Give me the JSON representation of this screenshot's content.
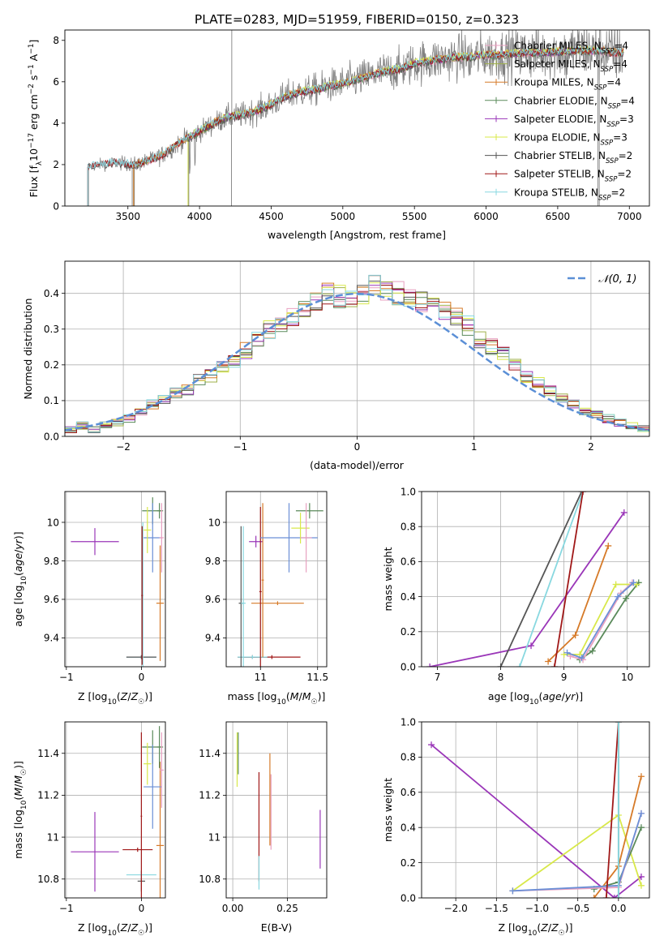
{
  "figure": {
    "title": "PLATE=0283, MJD=51959, FIBERID=0150, z=0.323"
  },
  "colors": {
    "Chabrier MILES": "#e8a0c0",
    "Salpeter MILES": "#9fb04a",
    "Kroupa MILES": "#d67a28",
    "Chabrier ELODIE": "#5a8a5a",
    "Salpeter ELODIE": "#9a36b8",
    "Kroupa ELODIE": "#d8e84a",
    "Chabrier STELIB": "#555555",
    "Salpeter STELIB": "#a01818",
    "Kroupa STELIB": "#88d8e0",
    "data": "#808080",
    "gaussian": "#5b8fd6",
    "extra_blue": "#6b8fd6"
  },
  "chart_data": [
    {
      "id": "spectrum",
      "type": "line",
      "xlabel": "wavelength [Angstrom, rest frame]",
      "ylabel": "Flux [f_λ 10^-17 erg cm^-2 s^-1 A^-1]",
      "xlim": [
        3060,
        7140
      ],
      "ylim": [
        0,
        8.5
      ],
      "xticks": [
        3500,
        4000,
        4500,
        5000,
        5500,
        6000,
        6500,
        7000
      ],
      "yticks": [
        0,
        2,
        4,
        6,
        8
      ],
      "grid": false,
      "legend_position": "right",
      "continuum": {
        "x": [
          3220,
          3300,
          3400,
          3480,
          3550,
          3650,
          3750,
          3850,
          3920,
          4000,
          4100,
          4200,
          4300,
          4400,
          4500,
          4600,
          4700,
          4800,
          4900,
          5000,
          5100,
          5200,
          5300,
          5400,
          5500,
          5600,
          5700,
          5800,
          5900,
          6000,
          6100,
          6200,
          6300,
          6400,
          6500,
          6600,
          6700,
          6800,
          6900,
          7000
        ],
        "y": [
          1.9,
          2.0,
          2.1,
          2.05,
          2.0,
          2.2,
          2.5,
          3.0,
          3.3,
          3.6,
          4.0,
          4.3,
          4.4,
          4.6,
          4.9,
          5.3,
          5.5,
          5.6,
          5.8,
          5.9,
          6.1,
          6.3,
          6.5,
          6.6,
          6.9,
          7.0,
          7.1,
          7.2,
          7.2,
          7.3,
          7.3,
          7.35,
          7.4,
          7.4,
          7.45,
          7.5,
          7.5,
          7.5,
          7.4,
          7.4
        ]
      },
      "data_range": [
        3220,
        6960
      ],
      "series": [
        {
          "name": "Chabrier MILES, N_SSP=4",
          "color_key": "Chabrier MILES",
          "x_start": 3540,
          "x_end": 6960
        },
        {
          "name": "Salpeter MILES, N_SSP=4",
          "color_key": "Salpeter MILES",
          "x_start": 3540,
          "x_end": 6960
        },
        {
          "name": "Kroupa MILES, N_SSP=4",
          "color_key": "Kroupa MILES",
          "x_start": 3540,
          "x_end": 6960
        },
        {
          "name": "Chabrier ELODIE, N_SSP=4",
          "color_key": "Chabrier ELODIE",
          "x_start": 3920,
          "x_end": 6800
        },
        {
          "name": "Salpeter ELODIE, N_SSP=3",
          "color_key": "Salpeter ELODIE",
          "x_start": 3920,
          "x_end": 6800
        },
        {
          "name": "Kroupa ELODIE, N_SSP=3",
          "color_key": "Kroupa ELODIE",
          "x_start": 3920,
          "x_end": 6800
        },
        {
          "name": "Chabrier STELIB, N_SSP=2",
          "color_key": "Chabrier STELIB",
          "x_start": 3220,
          "x_end": 6960
        },
        {
          "name": "Salpeter STELIB, N_SSP=2",
          "color_key": "Salpeter STELIB",
          "x_start": 3220,
          "x_end": 6960
        },
        {
          "name": "Kroupa STELIB, N_SSP=2",
          "color_key": "Kroupa STELIB",
          "x_start": 3220,
          "x_end": 6960
        }
      ],
      "legend_entries": [
        {
          "base": "Chabrier MILES, N",
          "sub": "SSP",
          "tail": "=4",
          "color_key": "Chabrier MILES"
        },
        {
          "base": "Salpeter MILES, N",
          "sub": "SSP",
          "tail": "=4",
          "color_key": "Salpeter MILES"
        },
        {
          "base": "Kroupa MILES, N",
          "sub": "SSP",
          "tail": "=4",
          "color_key": "Kroupa MILES"
        },
        {
          "base": "Chabrier ELODIE, N",
          "sub": "SSP",
          "tail": "=4",
          "color_key": "Chabrier ELODIE"
        },
        {
          "base": "Salpeter ELODIE, N",
          "sub": "SSP",
          "tail": "=3",
          "color_key": "Salpeter ELODIE"
        },
        {
          "base": "Kroupa ELODIE, N",
          "sub": "SSP",
          "tail": "=3",
          "color_key": "Kroupa ELODIE"
        },
        {
          "base": "Chabrier STELIB, N",
          "sub": "SSP",
          "tail": "=2",
          "color_key": "Chabrier STELIB"
        },
        {
          "base": "Salpeter STELIB, N",
          "sub": "SSP",
          "tail": "=2",
          "color_key": "Salpeter STELIB"
        },
        {
          "base": "Kroupa STELIB, N",
          "sub": "SSP",
          "tail": "=2",
          "color_key": "Kroupa STELIB"
        }
      ]
    },
    {
      "id": "residuals",
      "type": "area",
      "xlabel": "(data-model)/error",
      "ylabel": "Normed distribution",
      "xlim": [
        -2.5,
        2.5
      ],
      "ylim": [
        0,
        0.49
      ],
      "xticks": [
        -2,
        -1,
        0,
        1,
        2
      ],
      "yticks": [
        0.0,
        0.1,
        0.2,
        0.3,
        0.4
      ],
      "grid": true,
      "legend_position": "top-right",
      "gaussian_label": "𝒩(0, 1)",
      "bin_width": 0.1,
      "bin_start": -2.5,
      "mean_hist": [
        0.02,
        0.03,
        0.02,
        0.03,
        0.04,
        0.05,
        0.07,
        0.09,
        0.1,
        0.12,
        0.13,
        0.16,
        0.17,
        0.19,
        0.21,
        0.24,
        0.27,
        0.3,
        0.31,
        0.33,
        0.36,
        0.38,
        0.4,
        0.39,
        0.38,
        0.4,
        0.42,
        0.41,
        0.4,
        0.39,
        0.38,
        0.37,
        0.35,
        0.33,
        0.31,
        0.27,
        0.25,
        0.23,
        0.2,
        0.17,
        0.15,
        0.13,
        0.11,
        0.09,
        0.07,
        0.06,
        0.05,
        0.04,
        0.03,
        0.02
      ]
    },
    {
      "id": "z-age",
      "type": "scatter",
      "xlabel": "Z [log10(Z/Z☉)]",
      "ylabel": "age [log10(age/yr)]",
      "xlim": [
        -1.02,
        0.32
      ],
      "ylim": [
        9.25,
        10.16
      ],
      "xticks": [
        -1,
        0
      ],
      "yticks": [
        9.4,
        9.6,
        9.8,
        10.0
      ],
      "grid": true,
      "points": [
        {
          "x": -0.62,
          "y": 9.9,
          "xerr": 0.32,
          "yerr": 0.07,
          "color_key": "Salpeter ELODIE"
        },
        {
          "x": 0.0,
          "y": 9.3,
          "xerr": 0.2,
          "yerr": 0.01,
          "color_key": "Kroupa STELIB"
        },
        {
          "x": 0.0,
          "y": 9.3,
          "xerr": 0.2,
          "yerr": 0.01,
          "color_key": "Chabrier STELIB"
        },
        {
          "x": 0.25,
          "y": 9.58,
          "xerr": 0.05,
          "yerr": 0.3,
          "color_key": "Kroupa MILES"
        },
        {
          "x": 0.24,
          "y": 10.06,
          "xerr": 0.03,
          "yerr": 0.04,
          "color_key": "Chabrier ELODIE"
        },
        {
          "x": 0.15,
          "y": 10.06,
          "xerr": 0.14,
          "yerr": 0.07,
          "color_key": "Chabrier ELODIE"
        },
        {
          "x": 0.15,
          "y": 9.92,
          "xerr": 0.12,
          "yerr": 0.18,
          "color_key": "extra_blue"
        },
        {
          "x": 0.08,
          "y": 9.96,
          "xerr": 0.05,
          "yerr": 0.12,
          "color_key": "Kroupa ELODIE"
        },
        {
          "x": 0.27,
          "y": 9.92,
          "xerr": 0.03,
          "yerr": 0.18,
          "color_key": "Chabrier MILES"
        },
        {
          "x": 0.02,
          "y": 9.4,
          "xerr": 0.01,
          "yerr": 0.6,
          "color_key": "Kroupa STELIB"
        },
        {
          "x": 0.01,
          "y": 9.62,
          "xerr": 0.01,
          "yerr": 0.36,
          "color_key": "Salpeter STELIB"
        }
      ]
    },
    {
      "id": "mass-age",
      "type": "scatter",
      "xlabel": "mass [log10(M/M☉)]",
      "ylabel": "",
      "xlim": [
        10.7,
        11.58
      ],
      "ylim": [
        9.25,
        10.16
      ],
      "xticks": [
        11.0,
        11.5
      ],
      "yticks": [
        9.4,
        9.6,
        9.8,
        10.0
      ],
      "grid": true,
      "points": [
        {
          "x": 10.93,
          "y": 9.3,
          "xerr": 0.13,
          "yerr": 0.01,
          "color_key": "Salpeter STELIB"
        },
        {
          "x": 11.1,
          "y": 9.3,
          "xerr": 0.25,
          "yerr": 0.01,
          "color_key": "Salpeter STELIB"
        },
        {
          "x": 10.93,
          "y": 9.3,
          "xerr": 0.13,
          "yerr": 0.01,
          "color_key": "Kroupa STELIB"
        },
        {
          "x": 10.83,
          "y": 9.58,
          "xerr": 0.02,
          "yerr": 0.4,
          "color_key": "Chabrier STELIB"
        },
        {
          "x": 10.85,
          "y": 9.58,
          "xerr": 0.02,
          "yerr": 0.4,
          "color_key": "Kroupa STELIB"
        },
        {
          "x": 10.96,
          "y": 9.9,
          "xerr": 0.06,
          "yerr": 0.03,
          "color_key": "Salpeter ELODIE"
        },
        {
          "x": 11.15,
          "y": 9.58,
          "xerr": 0.23,
          "yerr": 0.01,
          "color_key": "Kroupa MILES"
        },
        {
          "x": 11.0,
          "y": 9.64,
          "xerr": 0.01,
          "yerr": 0.44,
          "color_key": "Salpeter STELIB"
        },
        {
          "x": 11.02,
          "y": 9.7,
          "xerr": 0.01,
          "yerr": 0.4,
          "color_key": "Kroupa MILES"
        },
        {
          "x": 11.25,
          "y": 9.92,
          "xerr": 0.25,
          "yerr": 0.18,
          "color_key": "extra_blue"
        },
        {
          "x": 11.35,
          "y": 9.97,
          "xerr": 0.08,
          "yerr": 0.08,
          "color_key": "Kroupa ELODIE"
        },
        {
          "x": 11.43,
          "y": 10.06,
          "xerr": 0.12,
          "yerr": 0.04,
          "color_key": "Chabrier ELODIE"
        },
        {
          "x": 11.4,
          "y": 9.92,
          "xerr": 0.05,
          "yerr": 0.18,
          "color_key": "Chabrier MILES"
        }
      ]
    },
    {
      "id": "age-weight",
      "type": "line",
      "xlabel": "age  [log10(age/yr)]",
      "ylabel": "mass weight",
      "xlim": [
        6.75,
        10.35
      ],
      "ylim": [
        0,
        1.0
      ],
      "xticks": [
        7,
        8,
        9,
        10
      ],
      "yticks": [
        0.0,
        0.2,
        0.4,
        0.6,
        0.8,
        1.0
      ],
      "grid": true,
      "series": [
        {
          "color_key": "Salpeter ELODIE",
          "x": [
            6.88,
            8.48,
            9.95
          ],
          "y": [
            0.0,
            0.12,
            0.88
          ]
        },
        {
          "color_key": "Kroupa MILES",
          "x": [
            8.75,
            9.18,
            9.7
          ],
          "y": [
            0.03,
            0.18,
            0.69
          ]
        },
        {
          "color_key": "Chabrier STELIB",
          "x": [
            8.0,
            9.28
          ],
          "y": [
            0.0,
            1.0
          ]
        },
        {
          "color_key": "Kroupa STELIB",
          "x": [
            8.3,
            9.3
          ],
          "y": [
            0.0,
            1.0
          ]
        },
        {
          "color_key": "Salpeter STELIB",
          "x": [
            8.85,
            9.3
          ],
          "y": [
            0.0,
            1.0
          ]
        },
        {
          "color_key": "Chabrier ELODIE",
          "x": [
            9.25,
            9.45,
            9.98,
            10.18
          ],
          "y": [
            0.04,
            0.09,
            0.39,
            0.48
          ]
        },
        {
          "color_key": "Kroupa ELODIE",
          "x": [
            9.0,
            9.25,
            9.82,
            10.15
          ],
          "y": [
            0.07,
            0.07,
            0.47,
            0.47
          ]
        },
        {
          "color_key": "Chabrier MILES",
          "x": [
            9.1,
            9.3,
            9.9,
            10.08
          ],
          "y": [
            0.06,
            0.04,
            0.42,
            0.48
          ]
        },
        {
          "color_key": "extra_blue",
          "x": [
            9.05,
            9.28,
            9.85,
            10.1
          ],
          "y": [
            0.08,
            0.05,
            0.4,
            0.48
          ]
        }
      ]
    },
    {
      "id": "z-mass",
      "type": "scatter",
      "xlabel": "Z [log10(Z/Z☉)]",
      "ylabel": "mass [log10(M/M☉)]",
      "xlim": [
        -1.02,
        0.32
      ],
      "ylim": [
        10.71,
        11.55
      ],
      "xticks": [
        -1,
        0
      ],
      "yticks": [
        10.8,
        11.0,
        11.2,
        11.4
      ],
      "grid": true,
      "points": [
        {
          "x": -0.62,
          "y": 10.93,
          "xerr": 0.32,
          "yerr": 0.19,
          "color_key": "Salpeter ELODIE"
        },
        {
          "x": 0.0,
          "y": 10.79,
          "xerr": 0.05,
          "yerr": 0.05,
          "color_key": "Chabrier STELIB"
        },
        {
          "x": 0.0,
          "y": 10.82,
          "xerr": 0.2,
          "yerr": 0.02,
          "color_key": "Kroupa STELIB"
        },
        {
          "x": -0.05,
          "y": 10.94,
          "xerr": 0.2,
          "yerr": 0.01,
          "color_key": "Salpeter STELIB"
        },
        {
          "x": 0.0,
          "y": 11.1,
          "xerr": 0.01,
          "yerr": 0.4,
          "color_key": "Salpeter STELIB"
        },
        {
          "x": 0.25,
          "y": 10.96,
          "xerr": 0.05,
          "yerr": 0.4,
          "color_key": "Kroupa MILES"
        },
        {
          "x": 0.15,
          "y": 11.43,
          "xerr": 0.14,
          "yerr": 0.08,
          "color_key": "Chabrier ELODIE"
        },
        {
          "x": 0.24,
          "y": 11.43,
          "xerr": 0.03,
          "yerr": 0.1,
          "color_key": "Chabrier ELODIE"
        },
        {
          "x": 0.15,
          "y": 11.24,
          "xerr": 0.12,
          "yerr": 0.2,
          "color_key": "extra_blue"
        },
        {
          "x": 0.08,
          "y": 11.35,
          "xerr": 0.05,
          "yerr": 0.1,
          "color_key": "Kroupa ELODIE"
        },
        {
          "x": 0.27,
          "y": 11.32,
          "xerr": 0.03,
          "yerr": 0.18,
          "color_key": "Chabrier MILES"
        }
      ]
    },
    {
      "id": "ebv-mass",
      "type": "scatter",
      "xlabel": "E(B-V)",
      "ylabel": "",
      "xlim": [
        -0.03,
        0.43
      ],
      "ylim": [
        10.71,
        11.55
      ],
      "xticks": [
        0.0,
        0.25
      ],
      "yticks": [
        10.8,
        11.0,
        11.2,
        11.4
      ],
      "grid": true,
      "points": [
        {
          "x": 0.02,
          "y": 11.37,
          "xerr": 0,
          "yerr": 0.13,
          "color_key": "Kroupa ELODIE"
        },
        {
          "x": 0.025,
          "y": 11.4,
          "xerr": 0,
          "yerr": 0.1,
          "color_key": "Chabrier ELODIE"
        },
        {
          "x": 0.12,
          "y": 11.05,
          "xerr": 0,
          "yerr": 0.26,
          "color_key": "Salpeter STELIB"
        },
        {
          "x": 0.12,
          "y": 10.83,
          "xerr": 0,
          "yerr": 0.08,
          "color_key": "Kroupa STELIB"
        },
        {
          "x": 0.17,
          "y": 11.18,
          "xerr": 0,
          "yerr": 0.22,
          "color_key": "Kroupa MILES"
        },
        {
          "x": 0.175,
          "y": 11.12,
          "xerr": 0,
          "yerr": 0.18,
          "color_key": "Chabrier MILES"
        },
        {
          "x": 0.4,
          "y": 10.99,
          "xerr": 0,
          "yerr": 0.14,
          "color_key": "Salpeter ELODIE"
        }
      ]
    },
    {
      "id": "z-weight",
      "type": "line",
      "xlabel": "Z [log10(Z/Z☉)]",
      "ylabel": "mass weight",
      "xlim": [
        -2.42,
        0.38
      ],
      "ylim": [
        0,
        1.0
      ],
      "xticks": [
        -2.0,
        -1.5,
        -1.0,
        -0.5,
        0.0
      ],
      "yticks": [
        0.0,
        0.2,
        0.4,
        0.6,
        0.8,
        1.0
      ],
      "grid": true,
      "series": [
        {
          "color_key": "Salpeter ELODIE",
          "x": [
            -2.3,
            -0.05,
            0.28
          ],
          "y": [
            0.87,
            0.0,
            0.12
          ]
        },
        {
          "color_key": "Kroupa ELODIE",
          "x": [
            -1.3,
            0.0,
            0.28
          ],
          "y": [
            0.04,
            0.47,
            0.07
          ]
        },
        {
          "color_key": "Chabrier ELODIE",
          "x": [
            -0.3,
            0.0,
            0.28
          ],
          "y": [
            0.05,
            0.09,
            0.4
          ]
        },
        {
          "color_key": "Kroupa MILES",
          "x": [
            -0.3,
            0.0,
            0.28
          ],
          "y": [
            0.0,
            0.18,
            0.69
          ]
        },
        {
          "color_key": "Chabrier MILES",
          "x": [
            -1.3,
            0.0,
            0.28
          ],
          "y": [
            0.04,
            0.06,
            0.48
          ]
        },
        {
          "color_key": "extra_blue",
          "x": [
            -1.3,
            0.0,
            0.28
          ],
          "y": [
            0.04,
            0.07,
            0.48
          ]
        },
        {
          "color_key": "Salpeter STELIB",
          "x": [
            -0.15,
            0.0
          ],
          "y": [
            0.0,
            1.0
          ]
        },
        {
          "color_key": "Chabrier STELIB",
          "x": [
            0.0,
            0.0
          ],
          "y": [
            0.0,
            1.0
          ]
        },
        {
          "color_key": "Kroupa STELIB",
          "x": [
            0.0,
            0.0
          ],
          "y": [
            0.0,
            1.0
          ]
        }
      ]
    }
  ]
}
